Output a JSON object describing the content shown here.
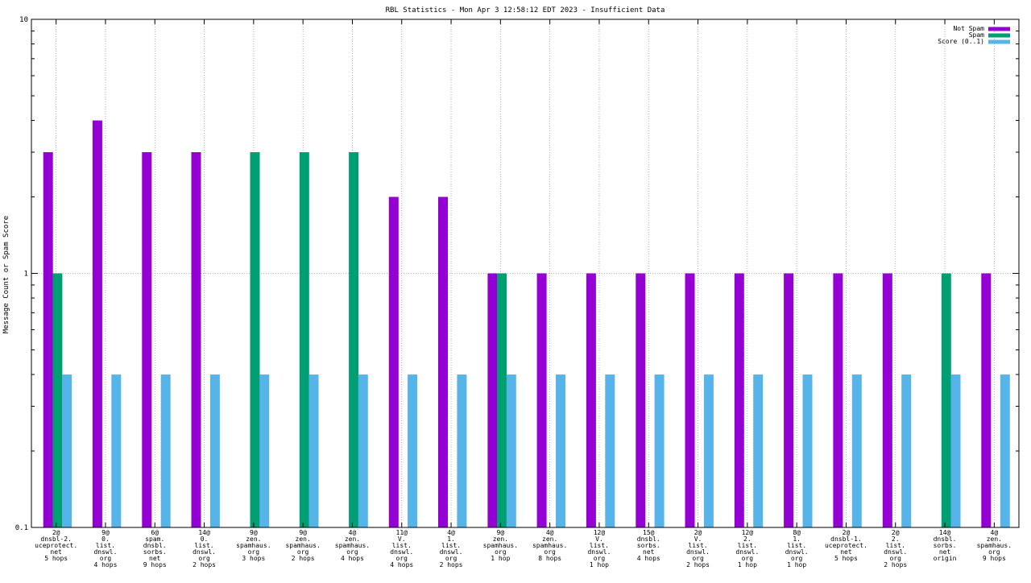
{
  "chart_data": {
    "type": "bar",
    "title": "RBL Statistics - Mon Apr  3 12:58:12 EDT 2023 - Insufficient Data",
    "ylabel": "Message Count or Spam Score",
    "xlabel": "",
    "yscale": "log",
    "ylim": [
      0.1,
      10
    ],
    "yticks": [
      {
        "value": 0.1,
        "label": "0.1"
      },
      {
        "value": 1,
        "label": "1"
      },
      {
        "value": 10,
        "label": "10"
      }
    ],
    "grid": "major-dotted",
    "legend_position": "top-right",
    "categories": [
      [
        "2@",
        "dnsbl-2.",
        "uceprotect.",
        "net",
        "5 hops"
      ],
      [
        "9@",
        "0.",
        "list.",
        "dnswl.",
        "org",
        "4 hops"
      ],
      [
        "6@",
        "spam.",
        "dnsbl.",
        "sorbs.",
        "net",
        "9 hops"
      ],
      [
        "14@",
        "0.",
        "list.",
        "dnswl.",
        "org",
        "2 hops"
      ],
      [
        "9@",
        "zen.",
        "spamhaus.",
        "org",
        "3 hops"
      ],
      [
        "9@",
        "zen.",
        "spamhaus.",
        "org",
        "2 hops"
      ],
      [
        "4@",
        "zen.",
        "spamhaus.",
        "org",
        "4 hops"
      ],
      [
        "11@",
        "V.",
        "list.",
        "dnswl.",
        "org",
        "4 hops"
      ],
      [
        "4@",
        "1.",
        "list.",
        "dnswl.",
        "org",
        "2 hops"
      ],
      [
        "9@",
        "zen.",
        "spamhaus.",
        "org",
        "1 hop"
      ],
      [
        "4@",
        "zen.",
        "spamhaus.",
        "org",
        "8 hops"
      ],
      [
        "12@",
        "V.",
        "list.",
        "dnswl.",
        "org",
        "1 hop"
      ],
      [
        "15@",
        "dnsbl.",
        "sorbs.",
        "net",
        "4 hops"
      ],
      [
        "2@",
        "V.",
        "list.",
        "dnswl.",
        "org",
        "2 hops"
      ],
      [
        "12@",
        "2.",
        "list.",
        "dnswl.",
        "org",
        "1 hop"
      ],
      [
        "8@",
        "1.",
        "list.",
        "dnswl.",
        "org",
        "1 hop"
      ],
      [
        "2@",
        "dnsbl-1.",
        "uceprotect.",
        "net",
        "5 hops"
      ],
      [
        "2@",
        "2.",
        "list.",
        "dnswl.",
        "org",
        "2 hops"
      ],
      [
        "14@",
        "dnsbl.",
        "sorbs.",
        "net",
        "origin"
      ],
      [
        "4@",
        "zen.",
        "spamhaus.",
        "org",
        "9 hops"
      ]
    ],
    "series": [
      {
        "name": "Not Spam",
        "color": "#9400d3",
        "values": [
          3,
          4,
          3,
          3,
          null,
          null,
          null,
          2,
          2,
          1,
          1,
          1,
          1,
          1,
          1,
          1,
          1,
          1,
          null,
          1
        ]
      },
      {
        "name": "Spam",
        "color": "#009e73",
        "values": [
          1,
          null,
          null,
          null,
          3,
          3,
          3,
          null,
          null,
          1,
          null,
          null,
          null,
          null,
          null,
          null,
          null,
          null,
          1,
          null
        ]
      },
      {
        "name": "Score (0..1)",
        "color": "#56b4e9",
        "values": [
          0.4,
          0.4,
          0.4,
          0.4,
          0.4,
          0.4,
          0.4,
          0.4,
          0.4,
          0.4,
          0.4,
          0.4,
          0.4,
          0.4,
          0.4,
          0.4,
          0.4,
          0.4,
          0.4,
          0.4
        ]
      }
    ]
  }
}
